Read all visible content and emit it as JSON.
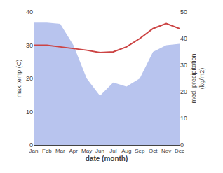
{
  "chart_data": {
    "type": "line",
    "categories": [
      "Jan",
      "Feb",
      "Mar",
      "Apr",
      "May",
      "Jun",
      "Jul",
      "Aug",
      "Sep",
      "Oct",
      "Nov",
      "Dec"
    ],
    "series": [
      {
        "type": "area",
        "axis": "y2",
        "color": "#b8c4ee",
        "values": [
          46.0,
          46.0,
          45.5,
          37.5,
          25.0,
          18.5,
          23.5,
          22.0,
          25.0,
          35.0,
          37.5,
          38.0
        ]
      },
      {
        "type": "line",
        "color": "#cc4444",
        "values": [
          30.0,
          30.0,
          29.5,
          29.0,
          28.5,
          27.8,
          28.0,
          29.5,
          32.0,
          35.0,
          36.5,
          35.0
        ]
      }
    ],
    "xlabel": "date (month)",
    "ylabel": "max temp (C)",
    "y2label": "med. precipitation\n(kg/m2)",
    "ylim": [
      0,
      40
    ],
    "yticks": [
      0,
      10,
      20,
      30,
      40
    ],
    "y2lim": [
      0,
      50
    ],
    "y2ticks": [
      0,
      10,
      20,
      30,
      40,
      50
    ],
    "grid": false
  }
}
